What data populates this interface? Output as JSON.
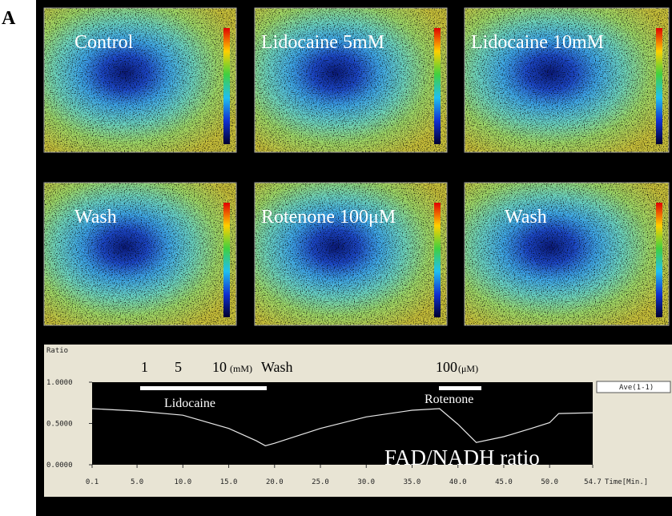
{
  "panel_label": "A",
  "images": [
    {
      "label": "Control"
    },
    {
      "label": "Lidocaine 5mM"
    },
    {
      "label": "Lidocaine 10mM"
    },
    {
      "label": "Wash"
    },
    {
      "label": "Rotenone 100μM"
    },
    {
      "label": "Wash"
    }
  ],
  "chart_data": {
    "type": "line",
    "y_label": "Ratio",
    "x_label": "Time[Min.]",
    "legend": "Ave(1-1)",
    "annotations": [
      "1",
      "5",
      "10",
      "(mM)",
      "Wash",
      "100",
      "(μM)",
      "Lidocaine",
      "Rotenone",
      "FAD/NADH ratio"
    ],
    "x": [
      0.1,
      5,
      10,
      15,
      18,
      19,
      20,
      25,
      30,
      35,
      38,
      40,
      42,
      45,
      48,
      50,
      51,
      54.7
    ],
    "series": [
      {
        "name": "Ave(1-1)",
        "color": "#e8e8e8",
        "values": [
          0.68,
          0.65,
          0.6,
          0.44,
          0.29,
          0.23,
          0.26,
          0.44,
          0.58,
          0.66,
          0.68,
          0.49,
          0.27,
          0.34,
          0.44,
          0.51,
          0.62,
          0.63
        ]
      }
    ],
    "xlim": [
      0.1,
      54.7
    ],
    "xticks": [
      0.1,
      {
        "value": 5,
        "label": "5.0"
      },
      {
        "value": 10,
        "label": "10.0"
      },
      {
        "value": 15,
        "label": "15.0"
      },
      {
        "value": 20,
        "label": "20.0"
      },
      {
        "value": 25,
        "label": "25.0"
      },
      {
        "value": 30,
        "label": "30.0"
      },
      {
        "value": 35,
        "label": "35.0"
      },
      {
        "value": 40,
        "label": "40.0"
      },
      {
        "value": 45,
        "label": "45.0"
      },
      {
        "value": 50,
        "label": "50.0"
      },
      54.7
    ],
    "ylim": [
      0,
      1
    ],
    "yticks": [
      {
        "value": 0,
        "label": "0.0000"
      },
      {
        "value": 0.5,
        "label": "0.5000"
      },
      {
        "value": 1,
        "label": "1.0000"
      }
    ]
  }
}
